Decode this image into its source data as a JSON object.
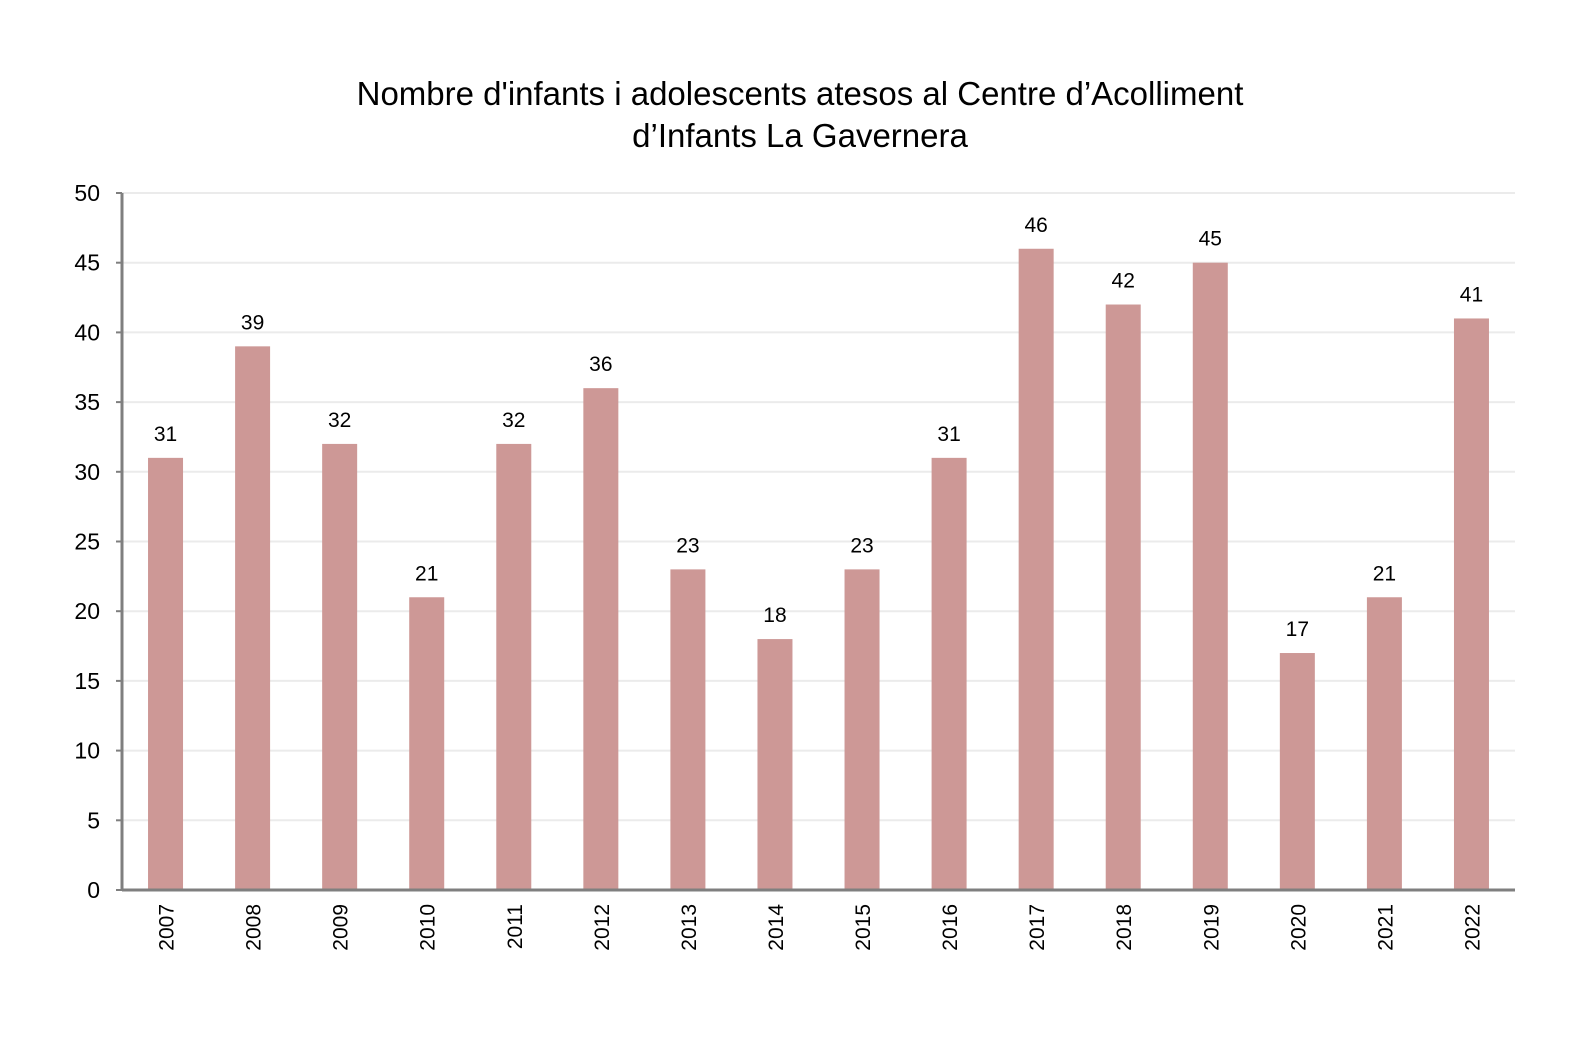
{
  "chart_data": {
    "type": "bar",
    "title_lines": [
      "Nombre d'infants i adolescents atesos al Centre d’Acolliment",
      "d’Infants La Gavernera"
    ],
    "categories": [
      "2007",
      "2008",
      "2009",
      "2010",
      "2011",
      "2012",
      "2013",
      "2014",
      "2015",
      "2016",
      "2017",
      "2018",
      "2019",
      "2020",
      "2021",
      "2022"
    ],
    "values": [
      31,
      39,
      32,
      21,
      32,
      36,
      23,
      18,
      23,
      31,
      46,
      42,
      45,
      17,
      21,
      41
    ],
    "ylim": [
      0,
      50
    ],
    "yticks": [
      0,
      5,
      10,
      15,
      20,
      25,
      30,
      35,
      40,
      45,
      50
    ],
    "xlabel": "",
    "ylabel": "",
    "grid": true,
    "data_labels": true,
    "bar_color": "#cd9896",
    "axis_color": "#7f7f7f",
    "grid_color": "#ebebeb"
  }
}
